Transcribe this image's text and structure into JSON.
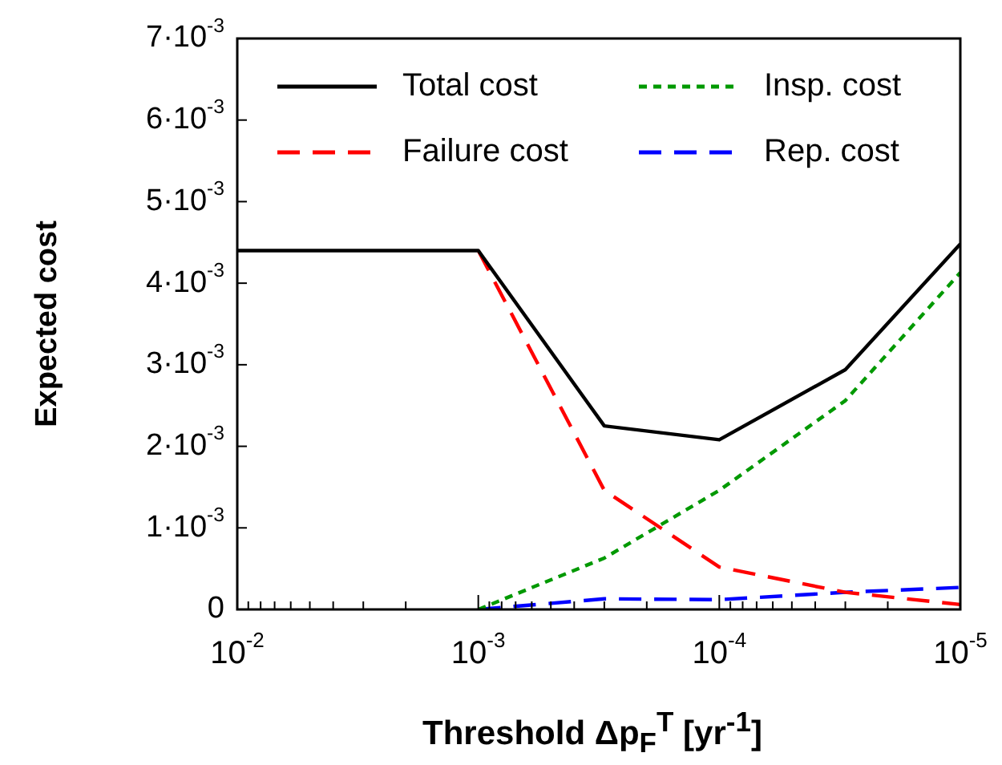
{
  "chart_data": {
    "type": "line",
    "xlabel": "Threshold Δp$_{F}$$^{T}$ [yr$^{-1}$]",
    "ylabel": "Expected cost",
    "log": "x",
    "x": [
      0.01,
      0.001,
      0.0003,
      0.0001,
      3e-05,
      1e-05
    ],
    "xlim": [
      0.01,
      1e-05
    ],
    "xticks": [
      {
        "value": 0.01,
        "label": "10$^{-2}$"
      },
      {
        "value": 0.009,
        "label": null
      },
      {
        "value": 0.008,
        "label": null
      },
      {
        "value": 0.007,
        "label": null
      },
      {
        "value": 0.006,
        "label": null
      },
      {
        "value": 0.005,
        "label": null
      },
      {
        "value": 0.004,
        "label": null
      },
      {
        "value": 0.003,
        "label": null
      },
      {
        "value": 0.002,
        "label": null
      },
      {
        "value": 0.001,
        "label": "10$^{-3}$"
      },
      {
        "value": 0.0009,
        "label": null
      },
      {
        "value": 0.0008,
        "label": null
      },
      {
        "value": 0.0007,
        "label": null
      },
      {
        "value": 0.0006,
        "label": null
      },
      {
        "value": 0.0005,
        "label": null
      },
      {
        "value": 0.0004,
        "label": null
      },
      {
        "value": 0.0003,
        "label": null
      },
      {
        "value": 0.0002,
        "label": null
      },
      {
        "value": 0.0001,
        "label": "10$^{-4}$"
      },
      {
        "value": 9e-05,
        "label": null
      },
      {
        "value": 8e-05,
        "label": null
      },
      {
        "value": 7e-05,
        "label": null
      },
      {
        "value": 6e-05,
        "label": null
      },
      {
        "value": 5e-05,
        "label": null
      },
      {
        "value": 4e-05,
        "label": null
      },
      {
        "value": 3e-05,
        "label": null
      },
      {
        "value": 2e-05,
        "label": null
      },
      {
        "value": 1e-05,
        "label": "10$^{-5}$"
      }
    ],
    "ylim": [
      0,
      0.007
    ],
    "yticks": [
      0,
      {
        "value": 0.001,
        "label": "1·10$^{-3}$"
      },
      {
        "value": 0.002,
        "label": "2·10$^{-3}$"
      },
      {
        "value": 0.003,
        "label": "3·10$^{-3}$"
      },
      {
        "value": 0.004,
        "label": "4·10$^{-3}$"
      },
      {
        "value": 0.005,
        "label": "5·10$^{-3}$"
      },
      {
        "value": 0.006,
        "label": "6·10$^{-3}$"
      },
      {
        "value": 0.007,
        "label": "7·10$^{-3}$"
      }
    ],
    "grid": false,
    "legend": "top",
    "marker": "none",
    "series": [
      {
        "name": "Total cost",
        "color": "#000000",
        "line_style": "solid",
        "values": [
          0.0044,
          0.0044,
          0.00225,
          0.00208,
          0.00294,
          0.00448
        ]
      },
      {
        "name": "Failure cost",
        "color": "#ff0000",
        "line_style": "dashed",
        "values": [
          null,
          0.0044,
          0.00146,
          0.00052,
          0.00021,
          6e-05
        ]
      },
      {
        "name": "Insp. cost",
        "color": "#009900",
        "line_style": "dotted",
        "values": [
          null,
          0,
          0.00063,
          0.00146,
          0.00256,
          0.00413
        ]
      },
      {
        "name": "Rep. cost",
        "color": "#0000ff",
        "line_style": "dashed",
        "values": [
          null,
          0,
          0.00013,
          0.00012,
          0.00021,
          0.00027
        ]
      }
    ]
  }
}
